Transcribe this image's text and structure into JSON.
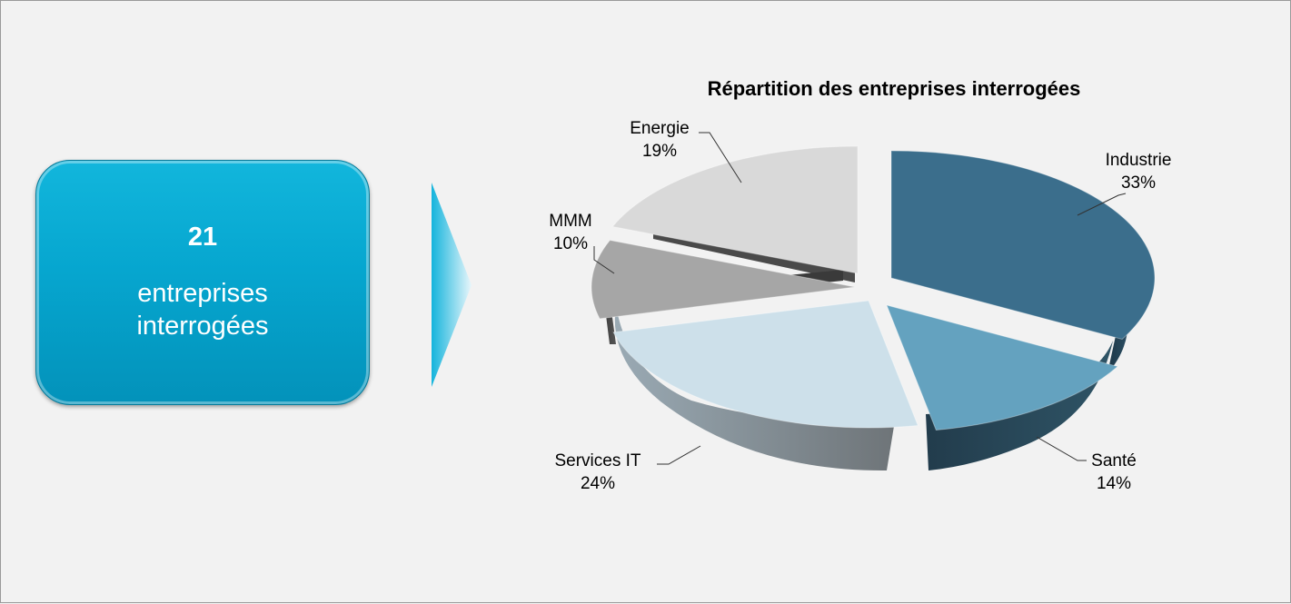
{
  "summary": {
    "count": "21",
    "label_line1": "entreprises",
    "label_line2": "interrogées"
  },
  "chart_data": {
    "type": "pie",
    "title": "Répartition des entreprises interrogées",
    "style": "3d-exploded",
    "slices": [
      {
        "name": "Industrie",
        "value": 33,
        "label": "33%",
        "color": "#3b6e8c"
      },
      {
        "name": "Santé",
        "value": 14,
        "label": "14%",
        "color": "#64a2bf"
      },
      {
        "name": "Services IT",
        "value": 24,
        "label": "24%",
        "color": "#cde0ea"
      },
      {
        "name": "MMM",
        "value": 10,
        "label": "10%",
        "color": "#a6a6a6"
      },
      {
        "name": "Energie",
        "value": 19,
        "label": "19%",
        "color": "#d9d9d9"
      }
    ]
  }
}
